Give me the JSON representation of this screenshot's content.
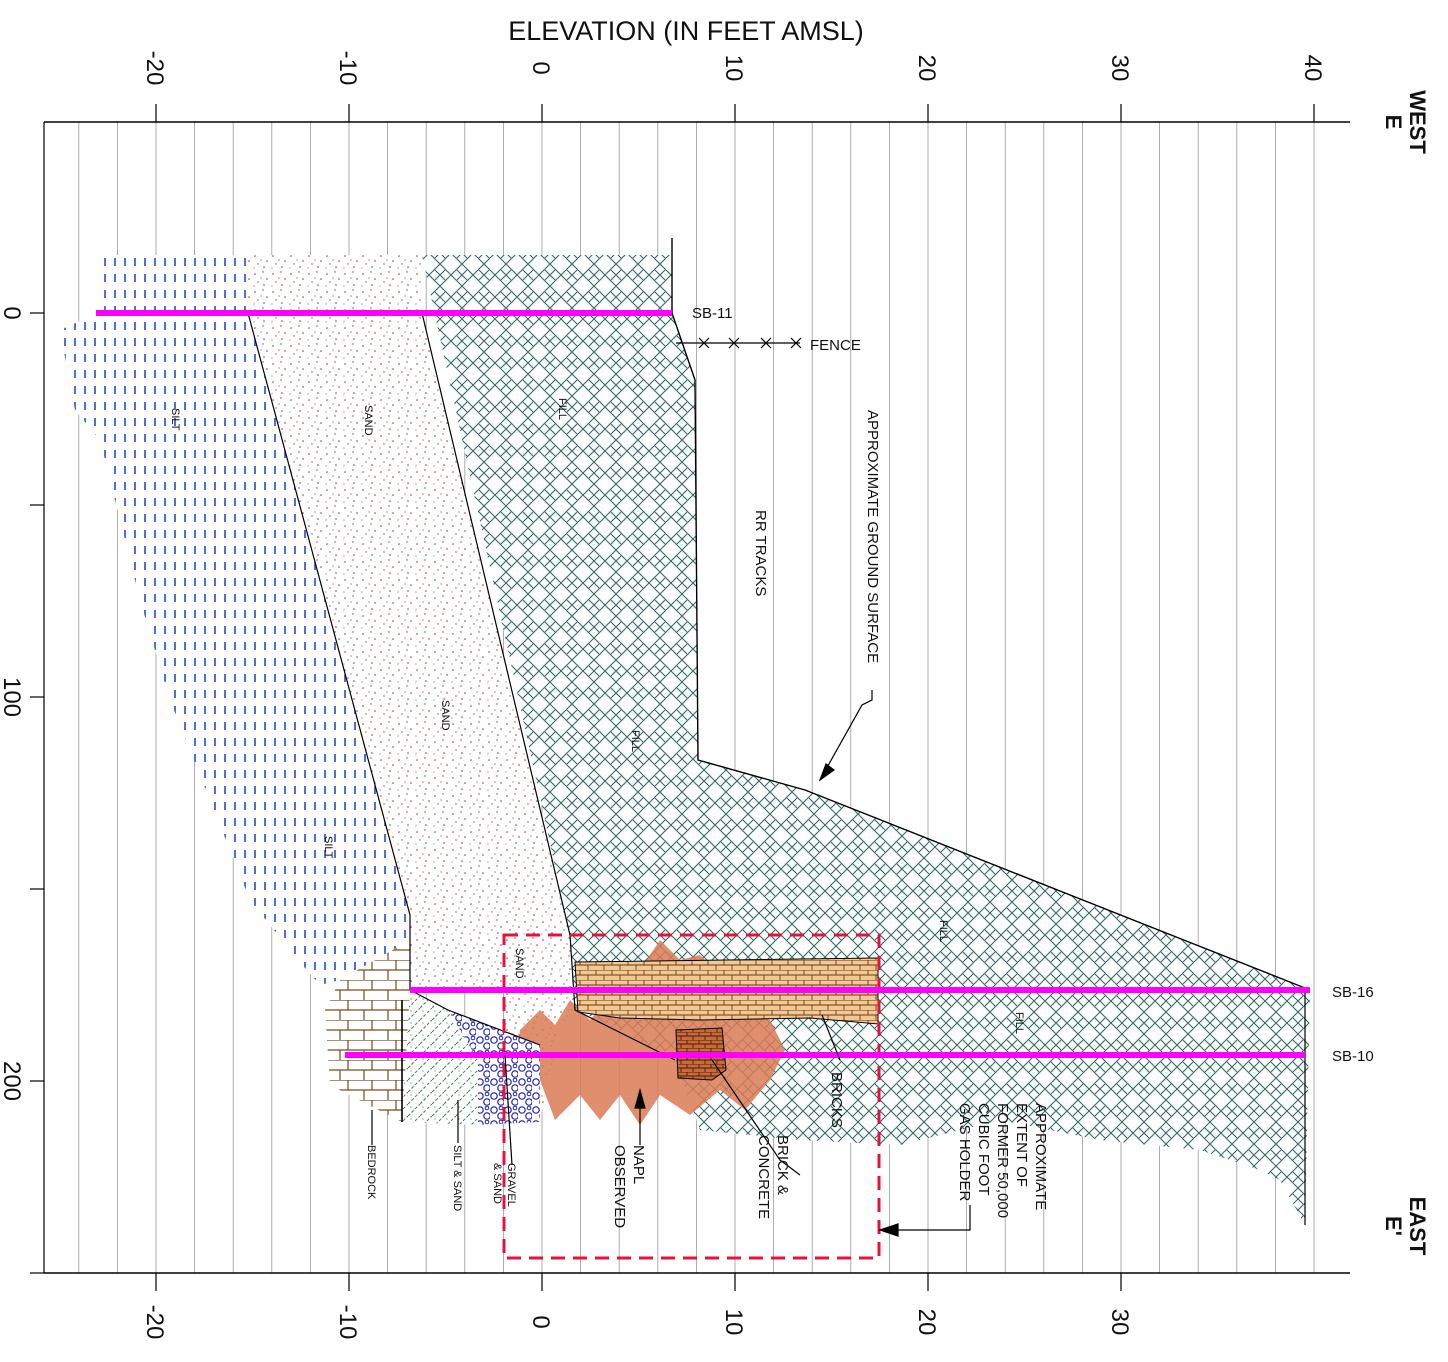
{
  "axis": {
    "title": "ELEVATION (IN FEET AMSL)",
    "elevation_ticks": [
      "-20",
      "-10",
      "0",
      "10",
      "20",
      "30",
      "40"
    ],
    "elevation_ticks_bottom": [
      "-20",
      "-10",
      "0",
      "10",
      "20",
      "30"
    ],
    "distance_ticks": [
      "0",
      "100",
      "200"
    ]
  },
  "directions": {
    "west_label": "WEST",
    "west_code": "E",
    "east_label": "EAST",
    "east_code": "E'"
  },
  "borings": [
    "SB-11",
    "SB-16",
    "SB-10"
  ],
  "layers": {
    "fill": "FILL",
    "sand": "SAND",
    "silt": "SILT",
    "bricks": "BRICKS",
    "brick_concrete": [
      "BRICK &",
      "CONCRETE"
    ],
    "napl": [
      "NAPL",
      "OBSERVED"
    ],
    "gravel_sand": [
      "GRAVEL",
      "& SAND"
    ],
    "silt_sand": "SILT & SAND",
    "bedrock": "BEDROCK"
  },
  "annotations": {
    "fence": "FENCE",
    "rr_tracks": "RR TRACKS",
    "ground_surface": "APPROXIMATE GROUND SURFACE",
    "gas_holder": [
      "APPROXIMATE",
      "EXTENT OF",
      "FORMER 50,000",
      "CUBIC FOOT",
      "GAS HOLDER"
    ]
  },
  "colors": {
    "fill": "#2f6b66",
    "sand": "#b03030",
    "silt": "#1f4fd0",
    "bricks": "#c98a2e",
    "napl": "#d97a55",
    "gravel": "#2020c0",
    "silt_sand": "#2a8a4a",
    "bedrock": "#7a4a1a",
    "boring": "#ff00ff",
    "gas_holder": "#e8103c"
  }
}
